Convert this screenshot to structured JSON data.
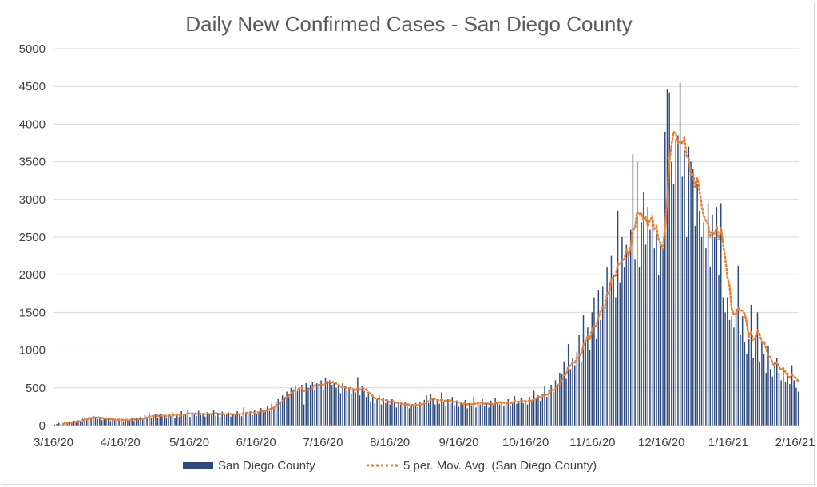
{
  "chart_data": {
    "type": "bar",
    "title": "Daily New Confirmed Cases - San Diego County",
    "xlabel": "",
    "ylabel": "",
    "ylim": [
      0,
      5000
    ],
    "yticks": [
      0,
      500,
      1000,
      1500,
      2000,
      2500,
      3000,
      3500,
      4000,
      4500,
      5000
    ],
    "xticks": [
      "3/16/20",
      "4/16/20",
      "5/16/20",
      "6/16/20",
      "7/16/20",
      "8/16/20",
      "9/16/20",
      "10/16/20",
      "11/16/20",
      "12/16/20",
      "1/16/21",
      "2/16/21"
    ],
    "x_start": "3/16/20",
    "grid": true,
    "legend_position": "bottom",
    "colors": {
      "bars": "#2e4a7d",
      "moving_average": "#ed7d31",
      "grid": "#d9d9d9"
    },
    "series": [
      {
        "name": "San Diego County",
        "type": "bar",
        "values": [
          15,
          22,
          35,
          18,
          25,
          55,
          30,
          48,
          40,
          62,
          55,
          70,
          48,
          90,
          110,
          85,
          120,
          95,
          130,
          100,
          88,
          115,
          72,
          105,
          80,
          95,
          60,
          85,
          75,
          68,
          92,
          78,
          55,
          88,
          70,
          82,
          95,
          60,
          100,
          75,
          120,
          85,
          140,
          110,
          170,
          95,
          130,
          150,
          105,
          160,
          125,
          140,
          110,
          155,
          130,
          175,
          100,
          145,
          120,
          190,
          135,
          160,
          210,
          115,
          175,
          150,
          130,
          195,
          140,
          165,
          120,
          180,
          155,
          145,
          200,
          130,
          170,
          115,
          185,
          150,
          140,
          175,
          120,
          160,
          135,
          190,
          145,
          125,
          240,
          155,
          170,
          190,
          140,
          205,
          160,
          185,
          230,
          175,
          210,
          260,
          195,
          290,
          240,
          320,
          350,
          300,
          400,
          380,
          450,
          420,
          500,
          480,
          520,
          460,
          500,
          540,
          280,
          560,
          500,
          540,
          580,
          480,
          560,
          520,
          600,
          480,
          630,
          590,
          600,
          540,
          560,
          500,
          520,
          430,
          560,
          520,
          470,
          510,
          420,
          480,
          440,
          640,
          400,
          520,
          460,
          380,
          430,
          320,
          380,
          300,
          350,
          400,
          280,
          360,
          300,
          330,
          280,
          350,
          320,
          240,
          300,
          280,
          260,
          310,
          290,
          230,
          280,
          270,
          300,
          250,
          310,
          260,
          340,
          400,
          300,
          420,
          360,
          280,
          330,
          290,
          440,
          320,
          260,
          350,
          290,
          380,
          270,
          320,
          250,
          300,
          280,
          340,
          230,
          300,
          260,
          380,
          240,
          310,
          280,
          350,
          260,
          300,
          240,
          330,
          270,
          360,
          300,
          280,
          320,
          260,
          310,
          350,
          270,
          300,
          390,
          290,
          320,
          360,
          300,
          340,
          280,
          380,
          320,
          460,
          350,
          400,
          330,
          420,
          520,
          380,
          480,
          540,
          450,
          600,
          520,
          700,
          680,
          850,
          620,
          1080,
          750,
          900,
          800,
          980,
          1200,
          850,
          1470,
          1100,
          1300,
          1000,
          1500,
          1700,
          1150,
          1800,
          1400,
          1850,
          1600,
          2100,
          1900,
          2250,
          2000,
          1700,
          2850,
          1900,
          2500,
          2100,
          2400,
          2300,
          2600,
          3600,
          2200,
          3500,
          2100,
          2700,
          3100,
          2400,
          2900,
          2600,
          2800,
          2350,
          2550,
          2000,
          2400,
          2350,
          3900,
          4470,
          4420,
          3500,
          3200,
          3800,
          3850,
          4550,
          3300,
          3650,
          2500,
          3700,
          3500,
          3400,
          2650,
          3200,
          2850,
          2500,
          2700,
          2350,
          2950,
          2100,
          2800,
          2500,
          2900,
          2000,
          2950,
          1700,
          1500,
          1700,
          1400,
          1450,
          1300,
          1550,
          2120,
          1200,
          1450,
          1100,
          950,
          1150,
          1600,
          900,
          1200,
          1500,
          850,
          1100,
          950,
          700,
          1050,
          750,
          650,
          850,
          900,
          700,
          600,
          750,
          580,
          700,
          550,
          800,
          600,
          500,
          450
        ]
      },
      {
        "name": "5 per. Mov. Avg. (San Diego County)",
        "type": "line",
        "window": 5
      }
    ]
  }
}
